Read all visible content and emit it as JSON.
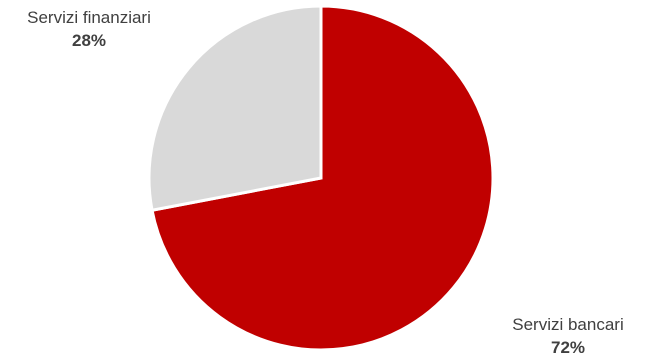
{
  "chart_data": {
    "type": "pie",
    "title": "",
    "categories": [
      "Servizi bancari",
      "Servizi finanziari"
    ],
    "values": [
      72,
      28
    ],
    "value_labels": [
      "72%",
      "28%"
    ],
    "colors": [
      "#C00000",
      "#D9D9D9"
    ],
    "separator_color": "#FFFFFF",
    "start_angle_deg": 0,
    "direction": "clockwise",
    "legend": "none",
    "data_label_position": "outside"
  }
}
